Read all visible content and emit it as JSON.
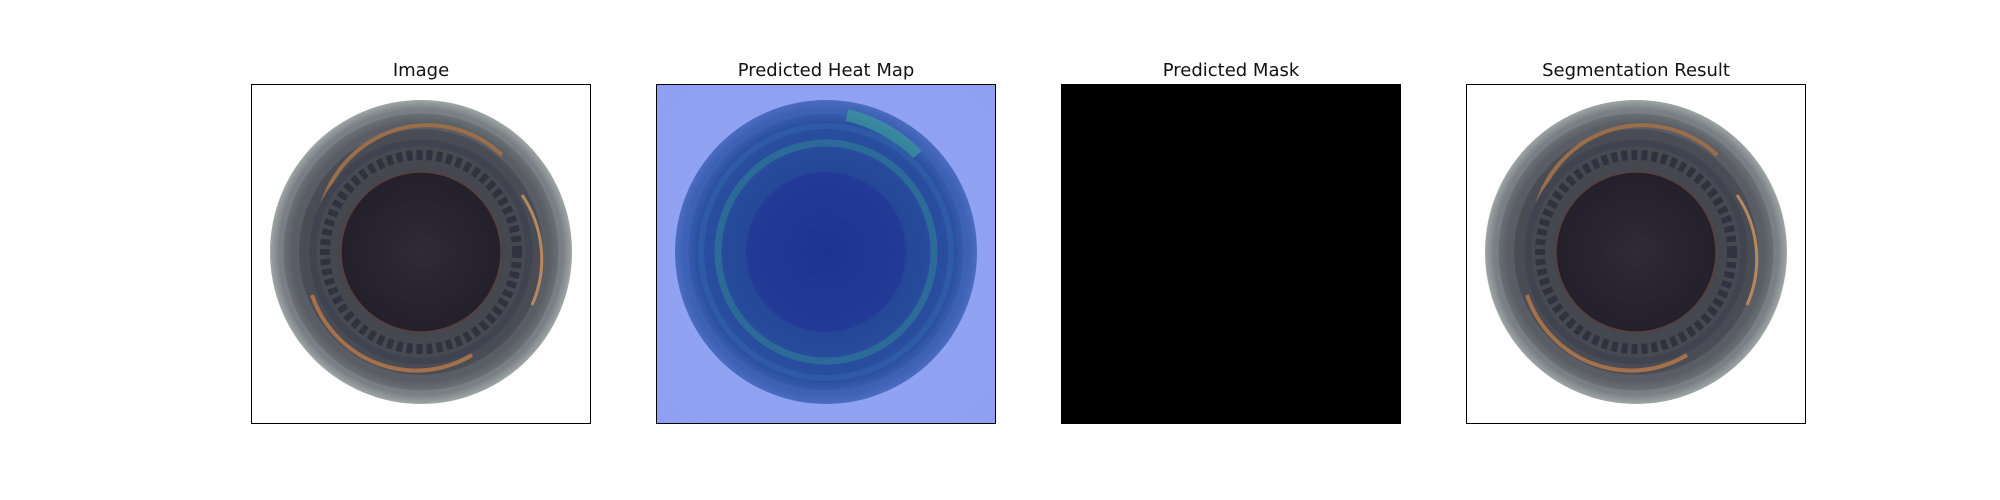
{
  "panels": [
    {
      "title": "Image",
      "kind": "photo"
    },
    {
      "title": "Predicted Heat Map",
      "kind": "heatmap",
      "overlay_color": "#8fa3f5"
    },
    {
      "title": "Predicted Mask",
      "kind": "mask",
      "fill_color": "#000000"
    },
    {
      "title": "Segmentation Result",
      "kind": "photo"
    }
  ]
}
